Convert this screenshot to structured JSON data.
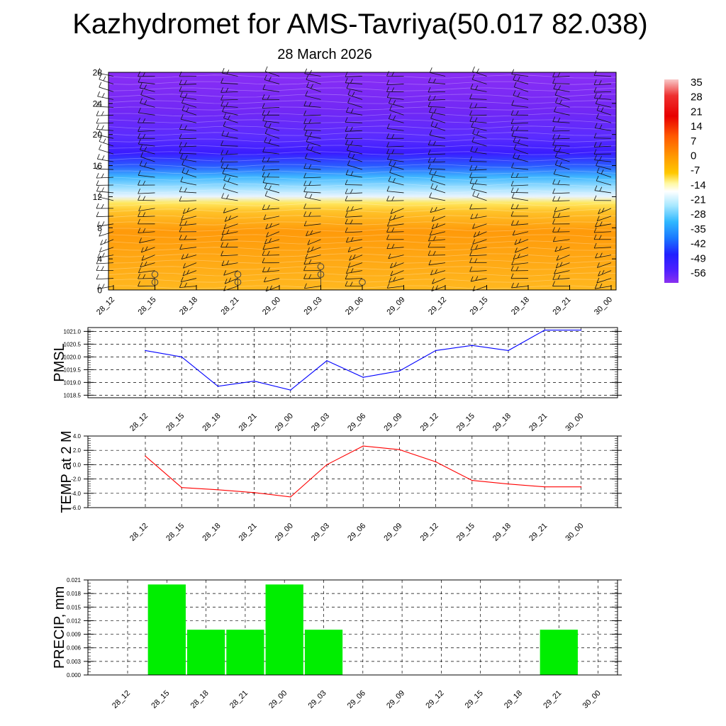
{
  "header": {
    "title": "Kazhydromet for AMS-Tavriya(50.017 82.038)",
    "date": "28 March 2026"
  },
  "times": [
    "28_12",
    "28_15",
    "28_18",
    "28_21",
    "29_00",
    "29_03",
    "29_06",
    "29_09",
    "29_12",
    "29_15",
    "29_18",
    "29_21",
    "30_00"
  ],
  "colors": {
    "pmsl_line": "#0000ff",
    "temp_line": "#ff0000",
    "precip_bar": "#00ee00",
    "grid": "#000000"
  },
  "chart_data": [
    {
      "type": "heatmap",
      "name": "cross-section",
      "title": "",
      "ylabel": "",
      "x": [
        "28_12",
        "28_15",
        "28_18",
        "28_21",
        "29_00",
        "29_03",
        "29_06",
        "29_09",
        "29_12",
        "29_15",
        "29_18",
        "29_21",
        "30_00"
      ],
      "y_ticks": [
        0,
        4,
        8,
        12,
        16,
        20,
        24,
        28
      ],
      "ylim": [
        0,
        28
      ],
      "colorbar": {
        "labels": [
          "35",
          "28",
          "21",
          "14",
          "7",
          "0",
          "-7",
          "-14",
          "-21",
          "-28",
          "-35",
          "-42",
          "-49",
          "-56"
        ],
        "range": [
          -60,
          38
        ]
      },
      "temperature_profile": [
        {
          "level": 0,
          "value": -2
        },
        {
          "level": 4,
          "value": -6
        },
        {
          "level": 8,
          "value": -10
        },
        {
          "level": 11,
          "value": -13
        },
        {
          "level": 12,
          "value": -17
        },
        {
          "level": 14,
          "value": -25
        },
        {
          "level": 16,
          "value": -38
        },
        {
          "level": 18,
          "value": -50
        },
        {
          "level": 22,
          "value": -56
        },
        {
          "level": 24,
          "value": -58
        },
        {
          "level": 28,
          "value": -54
        }
      ],
      "wind_barbs": "present at each time and level",
      "cloud_circles": [
        {
          "x": "28_15",
          "levels": [
            1,
            2
          ]
        },
        {
          "x": "28_21",
          "levels": [
            1,
            2
          ]
        },
        {
          "x": "29_03",
          "levels": [
            2,
            3
          ]
        },
        {
          "x": "29_06",
          "levels": [
            1
          ]
        }
      ]
    },
    {
      "type": "line",
      "name": "pmsl",
      "ylabel": "PMSL",
      "x": [
        "28_12",
        "28_15",
        "28_18",
        "28_21",
        "29_00",
        "29_03",
        "29_06",
        "29_09",
        "29_12",
        "29_15",
        "29_18",
        "29_21",
        "30_00"
      ],
      "values": [
        1020.25,
        1020.0,
        1018.85,
        1019.05,
        1018.7,
        1019.85,
        1019.2,
        1019.45,
        1020.25,
        1020.45,
        1020.25,
        1021.05,
        1021.05
      ],
      "ylim": [
        1018.4,
        1021.15
      ],
      "y_ticks": [
        "1018.5",
        "1019.0",
        "1019.5",
        "1020.0",
        "1020.5",
        "1021.0"
      ]
    },
    {
      "type": "line",
      "name": "temp",
      "ylabel": "TEMP at 2 M",
      "x": [
        "28_12",
        "28_15",
        "28_18",
        "28_21",
        "29_00",
        "29_03",
        "29_06",
        "29_09",
        "29_12",
        "29_15",
        "29_18",
        "29_21",
        "30_00"
      ],
      "values": [
        1.2,
        -3.2,
        -3.5,
        -3.9,
        -4.5,
        0.0,
        2.6,
        2.1,
        0.4,
        -2.2,
        -2.7,
        -3.1,
        -3.1
      ],
      "ylim": [
        -6.0,
        4.0
      ],
      "y_ticks": [
        "-6.0",
        "-4.0",
        "-2.0",
        "0.0",
        "2.0",
        "4.0"
      ]
    },
    {
      "type": "bar",
      "name": "precip",
      "ylabel": "PRECIP, mm",
      "x": [
        "28_12",
        "28_15",
        "28_18",
        "28_21",
        "29_00",
        "29_03",
        "29_06",
        "29_09",
        "29_12",
        "29_15",
        "29_18",
        "29_21",
        "30_00"
      ],
      "values": [
        0,
        0.02,
        0.01,
        0.01,
        0.02,
        0.01,
        0,
        0,
        0,
        0,
        0,
        0.01,
        0
      ],
      "ylim": [
        0,
        0.021
      ],
      "y_ticks": [
        "0.000",
        "0.003",
        "0.006",
        "0.009",
        "0.012",
        "0.015",
        "0.018",
        "0.021"
      ]
    }
  ]
}
